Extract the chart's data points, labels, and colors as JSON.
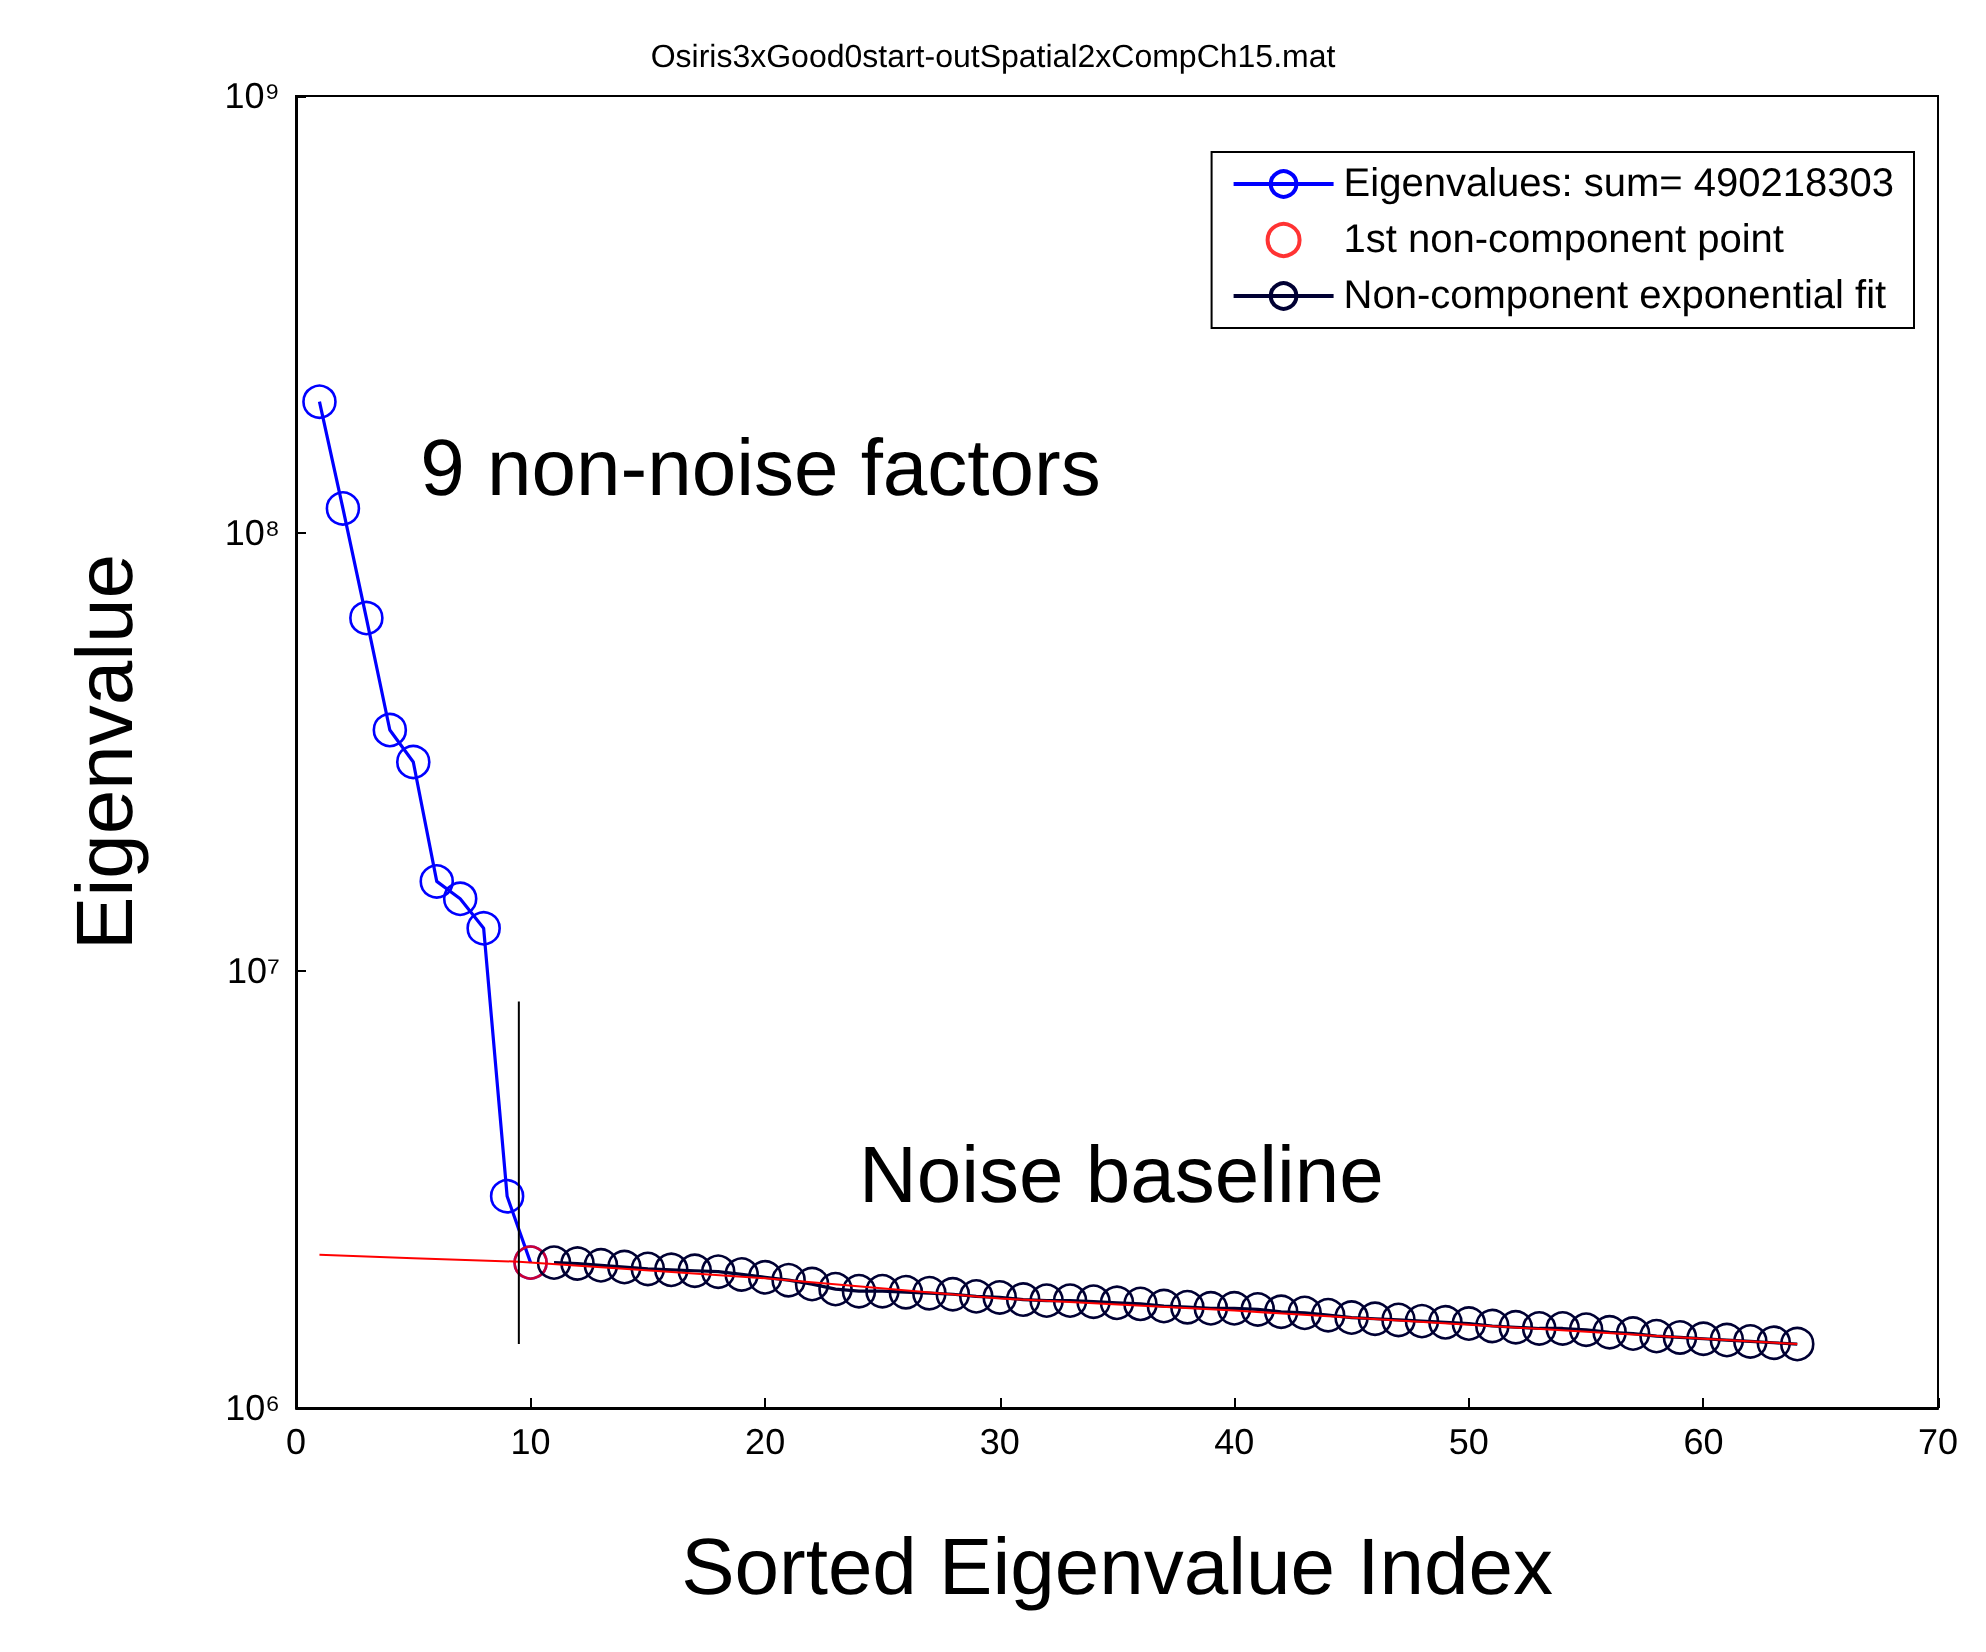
{
  "chart_data": {
    "type": "line",
    "title": "Osiris3xGood0start-outSpatial2xCompCh15.mat",
    "xlabel": "Sorted Eigenvalue Index",
    "ylabel": "Eigenvalue",
    "annotations": [
      "9 non-noise factors",
      "Noise baseline"
    ],
    "log": "y",
    "grid": false,
    "legend": "top right",
    "marker": "circle",
    "line_style": "solid",
    "xlim": [
      0,
      70
    ],
    "xticks": [
      0,
      10,
      20,
      30,
      40,
      50,
      60,
      70
    ],
    "ylim": [
      1000000,
      1000000000
    ],
    "yticks": [
      {
        "value": 1000000,
        "label": "10⁶"
      },
      {
        "value": 10000000,
        "label": "10⁷"
      },
      {
        "value": 100000000,
        "label": "10⁸"
      },
      {
        "value": 1000000000,
        "label": "10⁹"
      }
    ],
    "series": [
      {
        "name": "Eigenvalues: sum= 490218303",
        "color": "#0000ff",
        "x": [
          1,
          2,
          3,
          4,
          5,
          6,
          7,
          8,
          9,
          10
        ],
        "values": [
          200000000,
          114000000,
          64000000,
          35500000,
          30000000,
          16000000,
          14600000,
          12500000,
          3050000,
          2150000
        ]
      },
      {
        "name": "1st non-component point",
        "type": "scatter",
        "color": "#ff0000",
        "x": [
          10
        ],
        "values": [
          2150000
        ]
      },
      {
        "name": "Non-component exponential fit",
        "color": "#000033",
        "x": [
          11,
          12,
          13,
          14,
          15,
          16,
          17,
          18,
          19,
          20,
          21,
          22,
          23,
          24,
          25,
          26,
          27,
          28,
          29,
          30,
          31,
          32,
          33,
          34,
          35,
          36,
          37,
          38,
          39,
          40,
          41,
          42,
          43,
          44,
          45,
          46,
          47,
          48,
          49,
          50,
          51,
          52,
          53,
          54,
          55,
          56,
          57,
          58,
          59,
          60,
          61,
          62,
          63,
          64
        ],
        "values": [
          2150000,
          2140000,
          2120000,
          2100000,
          2080000,
          2070000,
          2060000,
          2050000,
          2020000,
          1990000,
          1960000,
          1920000,
          1870000,
          1850000,
          1850000,
          1840000,
          1830000,
          1820000,
          1800000,
          1790000,
          1770000,
          1760000,
          1760000,
          1750000,
          1740000,
          1730000,
          1710000,
          1700000,
          1690000,
          1690000,
          1680000,
          1660000,
          1650000,
          1630000,
          1610000,
          1600000,
          1590000,
          1580000,
          1570000,
          1560000,
          1540000,
          1530000,
          1520000,
          1520000,
          1510000,
          1490000,
          1480000,
          1460000,
          1450000,
          1440000,
          1430000,
          1420000,
          1410000,
          1400000
        ]
      },
      {
        "color": "#ff0000",
        "marker": "none",
        "x": [
          1,
          3,
          5,
          9.5,
          20,
          30,
          40,
          50,
          60,
          64
        ],
        "values": [
          2240000,
          2220000,
          2200000,
          2160000,
          1980000,
          1780000,
          1670000,
          1550000,
          1440000,
          1400000
        ]
      },
      {
        "color": "#000000",
        "marker": "none",
        "x": [
          9.5,
          9.5
        ],
        "values": [
          1400000,
          8500000
        ]
      }
    ]
  }
}
